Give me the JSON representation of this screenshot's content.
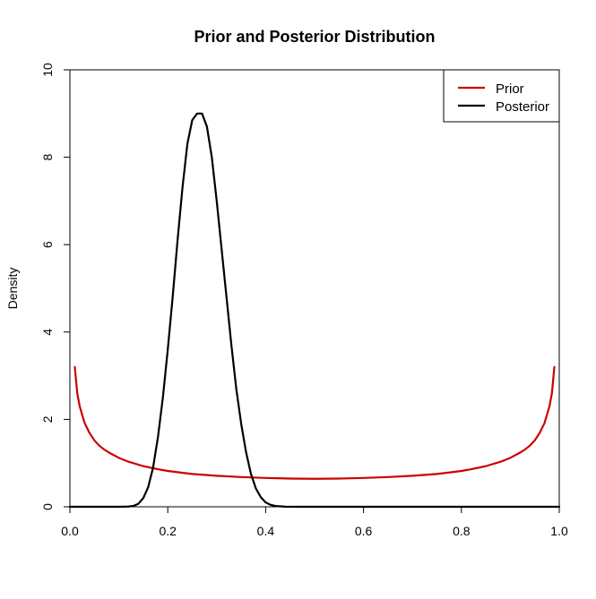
{
  "chart_data": {
    "type": "line",
    "title": "Prior and Posterior Distribution",
    "xlabel": "",
    "ylabel": "Density",
    "xlim": [
      0,
      1
    ],
    "ylim": [
      0,
      10
    ],
    "x_ticks": [
      0.0,
      0.2,
      0.4,
      0.6,
      0.8,
      1.0
    ],
    "x_tick_labels": [
      "0.0",
      "0.2",
      "0.4",
      "0.6",
      "0.8",
      "1.0"
    ],
    "y_ticks": [
      0,
      2,
      4,
      6,
      8,
      10
    ],
    "y_tick_labels": [
      "0",
      "2",
      "4",
      "6",
      "8",
      "10"
    ],
    "grid": false,
    "legend_position": "top-right",
    "series": [
      {
        "name": "Prior",
        "color": "#cc0000",
        "points": [
          [
            0.01,
            3.2
          ],
          [
            0.015,
            2.6
          ],
          [
            0.02,
            2.3
          ],
          [
            0.03,
            1.92
          ],
          [
            0.04,
            1.69
          ],
          [
            0.05,
            1.52
          ],
          [
            0.06,
            1.4
          ],
          [
            0.07,
            1.31
          ],
          [
            0.08,
            1.24
          ],
          [
            0.1,
            1.12
          ],
          [
            0.12,
            1.03
          ],
          [
            0.15,
            0.93
          ],
          [
            0.18,
            0.86
          ],
          [
            0.2,
            0.82
          ],
          [
            0.25,
            0.75
          ],
          [
            0.3,
            0.71
          ],
          [
            0.35,
            0.68
          ],
          [
            0.4,
            0.66
          ],
          [
            0.45,
            0.645
          ],
          [
            0.5,
            0.64
          ],
          [
            0.55,
            0.645
          ],
          [
            0.6,
            0.66
          ],
          [
            0.65,
            0.68
          ],
          [
            0.7,
            0.71
          ],
          [
            0.75,
            0.75
          ],
          [
            0.8,
            0.82
          ],
          [
            0.82,
            0.86
          ],
          [
            0.85,
            0.93
          ],
          [
            0.88,
            1.03
          ],
          [
            0.9,
            1.12
          ],
          [
            0.92,
            1.24
          ],
          [
            0.93,
            1.31
          ],
          [
            0.94,
            1.4
          ],
          [
            0.95,
            1.52
          ],
          [
            0.96,
            1.69
          ],
          [
            0.97,
            1.92
          ],
          [
            0.98,
            2.3
          ],
          [
            0.985,
            2.6
          ],
          [
            0.99,
            3.2
          ]
        ]
      },
      {
        "name": "Posterior",
        "color": "#000000",
        "points": [
          [
            0.0,
            0.0
          ],
          [
            0.1,
            0.0
          ],
          [
            0.12,
            0.005
          ],
          [
            0.13,
            0.02
          ],
          [
            0.14,
            0.07
          ],
          [
            0.15,
            0.2
          ],
          [
            0.16,
            0.45
          ],
          [
            0.17,
            0.9
          ],
          [
            0.18,
            1.6
          ],
          [
            0.19,
            2.5
          ],
          [
            0.2,
            3.6
          ],
          [
            0.21,
            4.8
          ],
          [
            0.22,
            6.1
          ],
          [
            0.23,
            7.3
          ],
          [
            0.24,
            8.3
          ],
          [
            0.25,
            8.85
          ],
          [
            0.26,
            9.0
          ],
          [
            0.27,
            9.0
          ],
          [
            0.28,
            8.7
          ],
          [
            0.29,
            8.0
          ],
          [
            0.3,
            7.0
          ],
          [
            0.31,
            5.9
          ],
          [
            0.32,
            4.8
          ],
          [
            0.33,
            3.7
          ],
          [
            0.34,
            2.7
          ],
          [
            0.35,
            1.9
          ],
          [
            0.36,
            1.25
          ],
          [
            0.37,
            0.75
          ],
          [
            0.38,
            0.42
          ],
          [
            0.39,
            0.22
          ],
          [
            0.4,
            0.1
          ],
          [
            0.41,
            0.045
          ],
          [
            0.42,
            0.018
          ],
          [
            0.44,
            0.003
          ],
          [
            0.46,
            0.0
          ],
          [
            0.5,
            0.0
          ],
          [
            1.0,
            0.0
          ]
        ]
      }
    ]
  }
}
